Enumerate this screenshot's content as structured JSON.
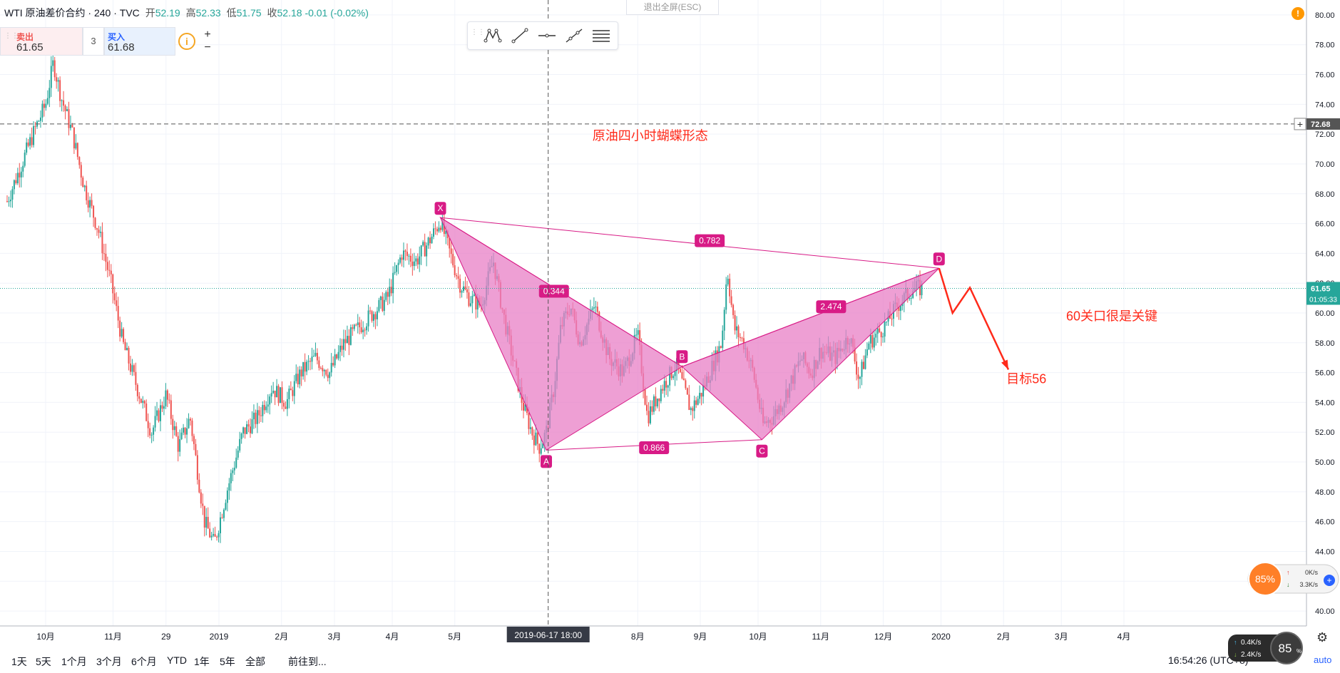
{
  "header": {
    "symbol": "WTI 原油差价合约 · 240 · TVC",
    "open_label": "开",
    "open": "52.19",
    "high_label": "高",
    "high": "52.33",
    "low_label": "低",
    "low": "51.75",
    "close_label": "收",
    "close": "52.18",
    "change": "-0.01 (-0.02%)"
  },
  "trade": {
    "sell_label": "卖出",
    "sell_price": "61.65",
    "qty": "3",
    "buy_label": "买入",
    "buy_price": "61.68",
    "info_icon": "i",
    "plus": "+",
    "minus": "−"
  },
  "exit_fullscreen": "退出全屏(ESC)",
  "notification": "!",
  "time_ranges": [
    "1天",
    "5天",
    "1个月",
    "3个月",
    "6个月",
    "YTD",
    "1年",
    "5年",
    "全部",
    "前往到..."
  ],
  "clock": "16:54:26 (UTC+8)",
  "auto_label": "auto",
  "speed_widget": {
    "percent": "85%",
    "up": "0K/s",
    "down": "3.3K/s"
  },
  "speed_widget2": {
    "up": "0.4K/s",
    "down": "2.4K/s",
    "percent": "85"
  },
  "colors": {
    "up": "#26a69a",
    "down": "#ef5350",
    "pattern": "#d81b86",
    "fill": "#e87fc6",
    "annotation": "#ff2a1a",
    "price_line": "#26a69a"
  },
  "chart_data": {
    "type": "candlestick",
    "title": "原油四小时蝴蝶形态",
    "y_ticks": [
      40,
      42,
      44,
      46,
      48,
      50,
      52,
      54,
      56,
      58,
      60,
      62,
      64,
      66,
      68,
      70,
      72,
      74,
      76,
      78,
      80
    ],
    "ylim": [
      39,
      81
    ],
    "x_ticks": [
      {
        "label": "10月",
        "t": 0.04
      },
      {
        "label": "11月",
        "t": 0.11
      },
      {
        "label": "29",
        "t": 0.165
      },
      {
        "label": "2019",
        "t": 0.22
      },
      {
        "label": "2月",
        "t": 0.285
      },
      {
        "label": "3月",
        "t": 0.34
      },
      {
        "label": "4月",
        "t": 0.4
      },
      {
        "label": "5月",
        "t": 0.465
      },
      {
        "label": "8月",
        "t": 0.655
      },
      {
        "label": "9月",
        "t": 0.72
      },
      {
        "label": "10月",
        "t": 0.78
      },
      {
        "label": "11月",
        "t": 0.845
      },
      {
        "label": "12月",
        "t": 0.91
      },
      {
        "label": "2020",
        "t": 0.97
      },
      {
        "label": "2月",
        "t": 1.035
      },
      {
        "label": "3月",
        "t": 1.095
      },
      {
        "label": "4月",
        "t": 1.16
      }
    ],
    "crosshair_label": "2019-06-17   18:00",
    "crosshair_t": 0.562,
    "price_trace": [
      [
        0.0,
        67.5
      ],
      [
        0.015,
        70
      ],
      [
        0.03,
        72.5
      ],
      [
        0.04,
        74
      ],
      [
        0.048,
        76.8
      ],
      [
        0.056,
        74.5
      ],
      [
        0.068,
        72
      ],
      [
        0.08,
        68.5
      ],
      [
        0.095,
        65.5
      ],
      [
        0.108,
        62
      ],
      [
        0.12,
        58
      ],
      [
        0.135,
        55
      ],
      [
        0.15,
        52
      ],
      [
        0.165,
        54.5
      ],
      [
        0.178,
        51
      ],
      [
        0.19,
        53
      ],
      [
        0.205,
        46
      ],
      [
        0.215,
        44.5
      ],
      [
        0.228,
        48
      ],
      [
        0.245,
        52
      ],
      [
        0.26,
        53
      ],
      [
        0.275,
        55
      ],
      [
        0.29,
        54
      ],
      [
        0.305,
        56
      ],
      [
        0.32,
        57
      ],
      [
        0.335,
        56
      ],
      [
        0.35,
        58
      ],
      [
        0.365,
        59
      ],
      [
        0.38,
        60
      ],
      [
        0.395,
        61
      ],
      [
        0.41,
        64
      ],
      [
        0.425,
        63.5
      ],
      [
        0.44,
        65
      ],
      [
        0.45,
        66.2
      ],
      [
        0.46,
        64
      ],
      [
        0.47,
        62
      ],
      [
        0.48,
        61
      ],
      [
        0.492,
        60.5
      ],
      [
        0.505,
        63.5
      ],
      [
        0.515,
        60
      ],
      [
        0.525,
        57
      ],
      [
        0.535,
        54
      ],
      [
        0.545,
        52
      ],
      [
        0.553,
        51
      ],
      [
        0.56,
        52
      ],
      [
        0.568,
        55
      ],
      [
        0.575,
        59
      ],
      [
        0.585,
        60.5
      ],
      [
        0.595,
        58
      ],
      [
        0.61,
        60.5
      ],
      [
        0.625,
        57
      ],
      [
        0.64,
        56
      ],
      [
        0.655,
        58.5
      ],
      [
        0.665,
        53
      ],
      [
        0.68,
        55
      ],
      [
        0.695,
        56.5
      ],
      [
        0.71,
        53.5
      ],
      [
        0.72,
        54.5
      ],
      [
        0.73,
        56
      ],
      [
        0.742,
        58
      ],
      [
        0.748,
        63
      ],
      [
        0.755,
        59
      ],
      [
        0.765,
        58
      ],
      [
        0.775,
        56
      ],
      [
        0.785,
        52.5
      ],
      [
        0.795,
        53
      ],
      [
        0.805,
        54
      ],
      [
        0.815,
        55.5
      ],
      [
        0.825,
        57
      ],
      [
        0.835,
        56
      ],
      [
        0.845,
        57.5
      ],
      [
        0.86,
        57
      ],
      [
        0.875,
        58.5
      ],
      [
        0.885,
        55.5
      ],
      [
        0.895,
        58
      ],
      [
        0.91,
        59
      ],
      [
        0.925,
        60.5
      ],
      [
        0.94,
        61.6
      ],
      [
        0.95,
        61.65
      ]
    ],
    "pattern": {
      "points": {
        "X": {
          "t": 0.45,
          "v": 66.4
        },
        "A": {
          "t": 0.56,
          "v": 50.8
        },
        "B": {
          "t": 0.701,
          "v": 56.4
        },
        "C": {
          "t": 0.784,
          "v": 51.5
        },
        "D": {
          "t": 0.968,
          "v": 63.0
        }
      },
      "ratios": {
        "XB": "0.344",
        "XD": "0.782",
        "AC": "0.866",
        "BD": "2.474"
      }
    },
    "annotations": {
      "key_level": "60关口很是关键",
      "target": "目标56"
    },
    "price_labels": {
      "hline": "72.68",
      "last": "61.65",
      "countdown": "01:05:33"
    }
  }
}
